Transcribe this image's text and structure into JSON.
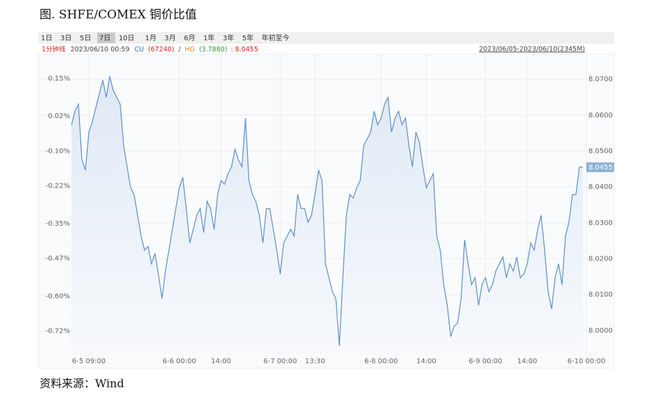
{
  "title": "图. SHFE/COMEX 铜价比值",
  "source": "资料来源：Wind",
  "toolbar": {
    "buttons": [
      "1日",
      "3日",
      "5日",
      "7日",
      "10日",
      "1月",
      "3月",
      "6月",
      "1年",
      "3年",
      "5年",
      "年初至今"
    ],
    "active": 3
  },
  "info": {
    "interval": "1分钟线",
    "time": "2023/06/10 00:59",
    "cu": "CU",
    "cu_price": "(67240)",
    "sep": "/",
    "hg": "HG",
    "hg_price": "(3.7880)",
    "ratio": ": 8.0455",
    "range": "2023/06/05-2023/06/10(2345M)"
  },
  "chart_data": {
    "type": "line",
    "xlim": [
      0,
      148
    ],
    "xticks": [
      {
        "value": 5,
        "label": "6-5 09:00"
      },
      {
        "value": 31,
        "label": "6-6 00:00"
      },
      {
        "value": 43,
        "label": "14:00"
      },
      {
        "value": 60,
        "label": "6-7 00:00"
      },
      {
        "value": 70,
        "label": "13:30"
      },
      {
        "value": 89,
        "label": "6-8 00:00"
      },
      {
        "value": 102,
        "label": "14:00"
      },
      {
        "value": 119,
        "label": "6-9 00:00"
      },
      {
        "value": 131,
        "label": "14:00"
      },
      {
        "value": 148,
        "label": "6-10 00:00"
      }
    ],
    "ylim": [
      -0.8,
      0.2
    ],
    "yticks": [
      {
        "value": 0.15,
        "label": "0.15%"
      },
      {
        "value": 0.02,
        "label": "0.02%"
      },
      {
        "value": -0.1,
        "label": "-0.10%"
      },
      {
        "value": -0.22,
        "label": "-0.22%"
      },
      {
        "value": -0.35,
        "label": "-0.35%"
      },
      {
        "value": -0.47,
        "label": "-0.47%"
      },
      {
        "value": -0.6,
        "label": "-0.60%"
      },
      {
        "value": -0.72,
        "label": "-0.72%"
      }
    ],
    "y2lim": [
      7.9934,
      8.0743
    ],
    "y2ticks": [
      {
        "value": 8.07,
        "label": "8.0700"
      },
      {
        "value": 8.06,
        "label": "8.0600"
      },
      {
        "value": 8.05,
        "label": "8.0500"
      },
      {
        "value": 8.04,
        "label": "8.0400"
      },
      {
        "value": 8.03,
        "label": "8.0300"
      },
      {
        "value": 8.02,
        "label": "8.0200"
      },
      {
        "value": 8.01,
        "label": "8.0100"
      },
      {
        "value": 8.0,
        "label": "8.0000"
      }
    ],
    "grid": true,
    "end_label": {
      "value": 8.0455,
      "label": "8.0455"
    },
    "series": [
      {
        "color": "#5b8ec4",
        "axis": "y2",
        "values": [
          8.0573,
          8.0611,
          8.0631,
          8.0476,
          8.0447,
          8.0553,
          8.0582,
          8.0621,
          8.066,
          8.0698,
          8.065,
          8.0708,
          8.0669,
          8.065,
          8.0631,
          8.0515,
          8.0456,
          8.0398,
          8.0379,
          8.0321,
          8.0263,
          8.0224,
          8.0234,
          8.0186,
          8.0215,
          8.0157,
          8.0089,
          8.0166,
          8.0224,
          8.0282,
          8.034,
          8.0398,
          8.0427,
          8.034,
          8.0244,
          8.0282,
          8.0321,
          8.034,
          8.0273,
          8.036,
          8.034,
          8.0282,
          8.0379,
          8.0418,
          8.0408,
          8.0437,
          8.0456,
          8.0505,
          8.0476,
          8.0456,
          8.0592,
          8.0418,
          8.0379,
          8.036,
          8.0321,
          8.0244,
          8.034,
          8.034,
          8.0282,
          8.0224,
          8.0157,
          8.0244,
          8.0263,
          8.0282,
          8.0263,
          8.0379,
          8.034,
          8.034,
          8.0302,
          8.0321,
          8.0379,
          8.0447,
          8.0418,
          8.0186,
          8.0147,
          8.0108,
          8.0089,
          7.9957,
          8.0147,
          8.0321,
          8.0379,
          8.0369,
          8.0398,
          8.0418,
          8.0515,
          8.0534,
          8.0553,
          8.0611,
          8.0573,
          8.0592,
          8.0631,
          8.065,
          8.0553,
          8.0592,
          8.0611,
          8.0573,
          8.0592,
          8.0515,
          8.0456,
          8.0553,
          8.0524,
          8.0456,
          8.0398,
          8.0418,
          8.0437,
          8.0263,
          8.0224,
          8.0128,
          8.007,
          7.9983,
          8.0012,
          8.0021,
          8.0089,
          8.0253,
          8.0186,
          8.0128,
          8.0147,
          8.007,
          8.0128,
          8.0147,
          8.0108,
          8.0128,
          8.0166,
          8.0186,
          8.0205,
          8.0147,
          8.0186,
          8.0166,
          8.0205,
          8.0147,
          8.0157,
          8.0186,
          8.0244,
          8.0224,
          8.0282,
          8.0321,
          8.0224,
          8.0108,
          8.006,
          8.0147,
          8.0186,
          8.0128,
          8.0263,
          8.0302,
          8.0379,
          8.0379,
          8.0456,
          8.0455
        ]
      }
    ]
  }
}
